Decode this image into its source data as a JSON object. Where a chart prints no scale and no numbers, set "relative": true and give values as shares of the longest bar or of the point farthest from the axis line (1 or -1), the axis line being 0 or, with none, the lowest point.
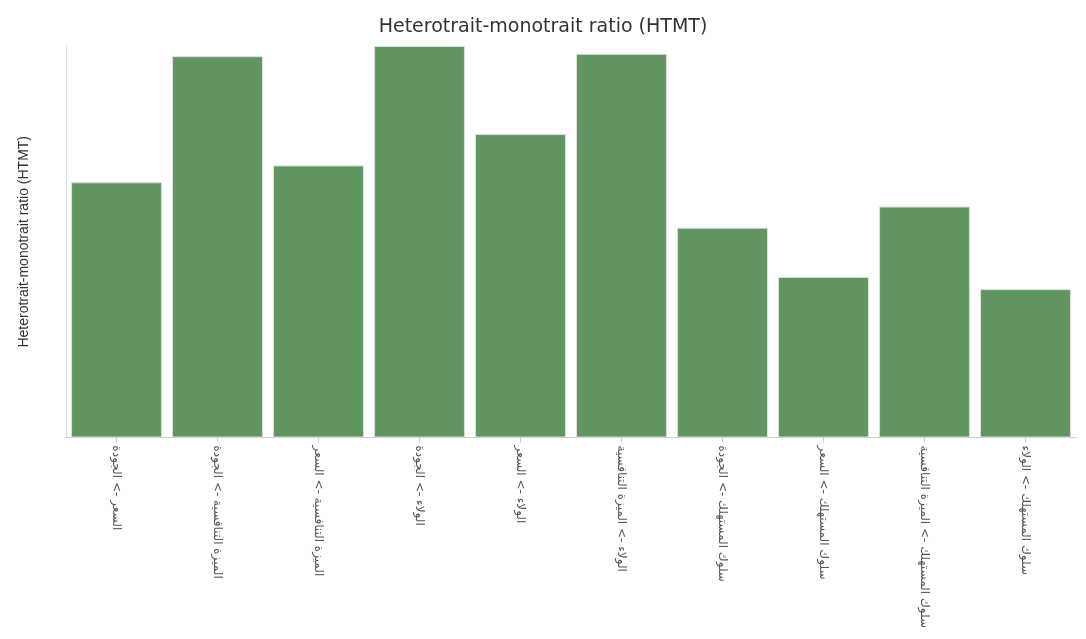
{
  "chart_data": {
    "type": "bar",
    "title": "Heterotrait-monotrait ratio (HTMT)",
    "ylabel": "Heterotrait-monotrait ratio (HTMT)",
    "relative": true,
    "grid": false,
    "color": "#60955f",
    "categories": [
      "السعر -> الجودة",
      "الميزة التنافسية -> الجودة",
      "الميزة التنافسية -> السعر",
      "الولاء -> الجودة",
      "الولاء -> السعر",
      "الولاء -> الميزة التنافسية",
      "سلوك المستهلك -> الجودة",
      "سلوك المستهلك -> السعر",
      "سلوك المستهلك -> الميزة التنافسية",
      "سلوك المستهلك -> الولاء"
    ],
    "values": [
      0.652,
      0.974,
      0.695,
      1,
      0.775,
      0.98,
      0.536,
      0.41,
      0.59,
      0.379
    ]
  }
}
